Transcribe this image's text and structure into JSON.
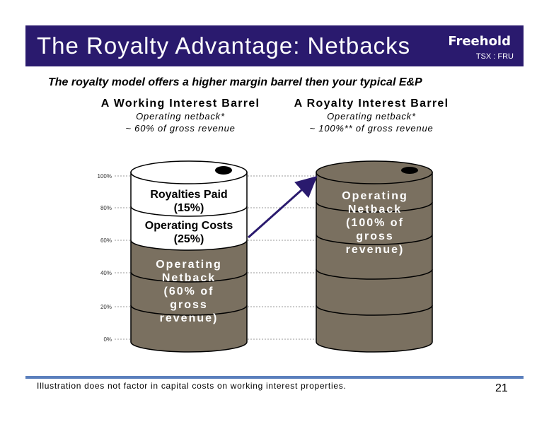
{
  "header": {
    "title": "The Royalty Advantage: Netbacks",
    "logo_text": "Freehold",
    "ticker": "TSX : FRU",
    "bg_color": "#2a1a6e"
  },
  "subtitle": "The royalty model offers a higher margin barrel then your typical E&P",
  "working_interest": {
    "title": "A Working Interest Barrel",
    "line1": "Operating netback*",
    "line2": "~ 60% of gross revenue",
    "royalties_line1": "Royalties Paid",
    "royalties_line2": "(15%)",
    "opcost_line1": "Operating Costs",
    "opcost_line2": "(25%)",
    "netback_lines": [
      "Operating",
      "Netback",
      "(60% of",
      "gross",
      "revenue)"
    ]
  },
  "royalty_interest": {
    "title": "A Royalty Interest Barrel",
    "line1": "Operating netback*",
    "line2": "~ 100%** of gross revenue",
    "netback_lines": [
      "Operating",
      "Netback",
      "(100% of",
      "gross",
      "revenue)"
    ]
  },
  "y_axis_ticks": [
    "100%",
    "80%",
    "60%",
    "40%",
    "20%",
    "0%"
  ],
  "colors": {
    "barrel_fill": "#7a7060",
    "barrel_white": "#ffffff",
    "arrow": "#2a1a6e",
    "footer_bar": "#5b7fbd"
  },
  "footnote": "Illustration does not factor in capital costs on working interest properties.",
  "page_number": "21"
}
